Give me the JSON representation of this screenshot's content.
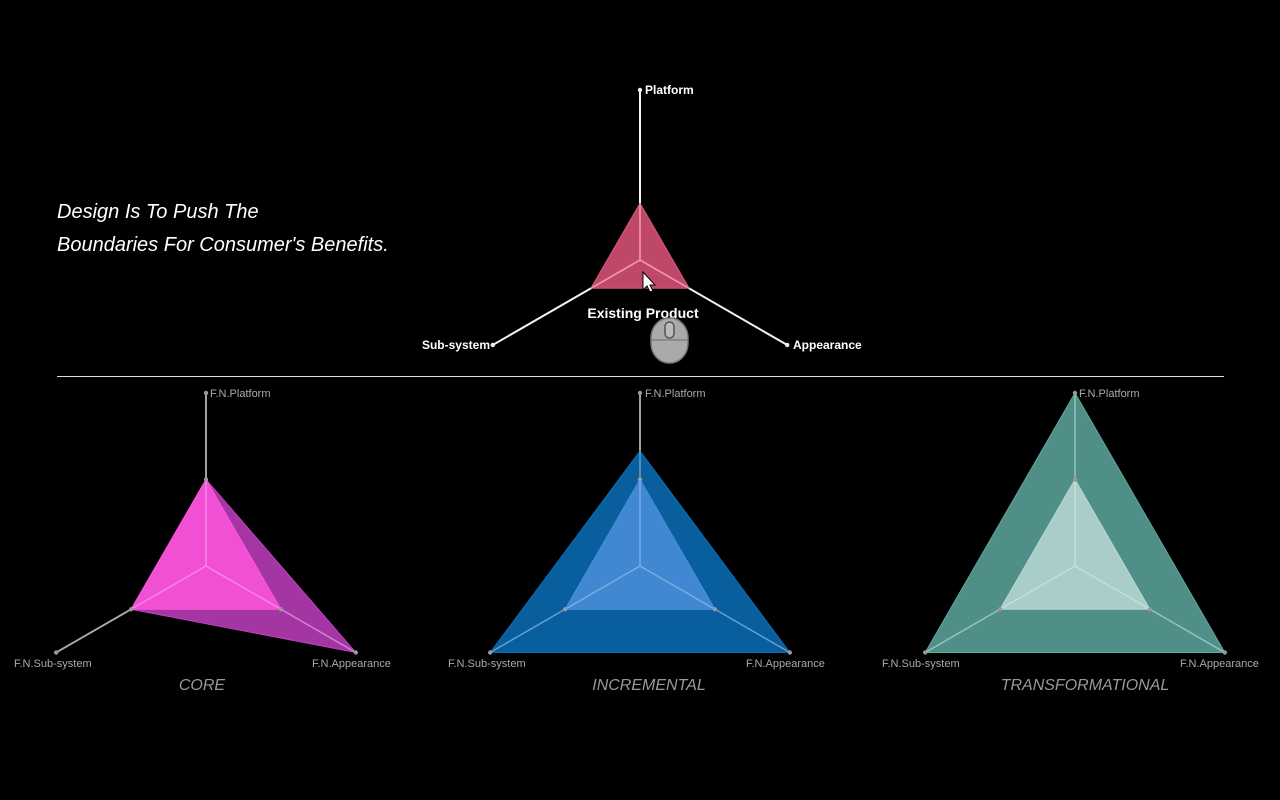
{
  "tagline": {
    "line1": "Design Is To Push The",
    "line2": "Boundaries For Consumer's Benefits."
  },
  "chart_data": [
    {
      "type": "radar",
      "title": "Existing Product",
      "axes": [
        "Platform",
        "Sub-system",
        "Appearance"
      ],
      "series": [
        {
          "name": "Existing Product",
          "values": [
            1,
            1,
            1
          ],
          "color": "#e0557a"
        }
      ],
      "scale_max": 3
    },
    {
      "type": "radar",
      "title": "CORE",
      "axes": [
        "F.N.Platform",
        "F.N.Sub-system",
        "F.N.Appearance"
      ],
      "series": [
        {
          "values": [
            1,
            1,
            1
          ],
          "color": "#ff55dd"
        },
        {
          "values": [
            1,
            1,
            2
          ],
          "color": "#c040c0"
        }
      ],
      "scale_max": 2
    },
    {
      "type": "radar",
      "title": "INCREMENTAL",
      "axes": [
        "F.N.Platform",
        "F.N.Sub-system",
        "F.N.Appearance"
      ],
      "series": [
        {
          "values": [
            1,
            1,
            1
          ],
          "color": "#4a8fdb"
        },
        {
          "values": [
            1.33,
            2,
            2
          ],
          "color": "#0a6fb8"
        }
      ],
      "scale_max": 2
    },
    {
      "type": "radar",
      "title": "TRANSFORMATIONAL",
      "axes": [
        "F.N.Platform",
        "F.N.Sub-system",
        "F.N.Appearance"
      ],
      "series": [
        {
          "values": [
            1,
            1,
            1
          ],
          "color": "#b8d8d4"
        },
        {
          "values": [
            2,
            2,
            2
          ],
          "color": "#5ea8a0"
        }
      ],
      "scale_max": 2
    }
  ]
}
